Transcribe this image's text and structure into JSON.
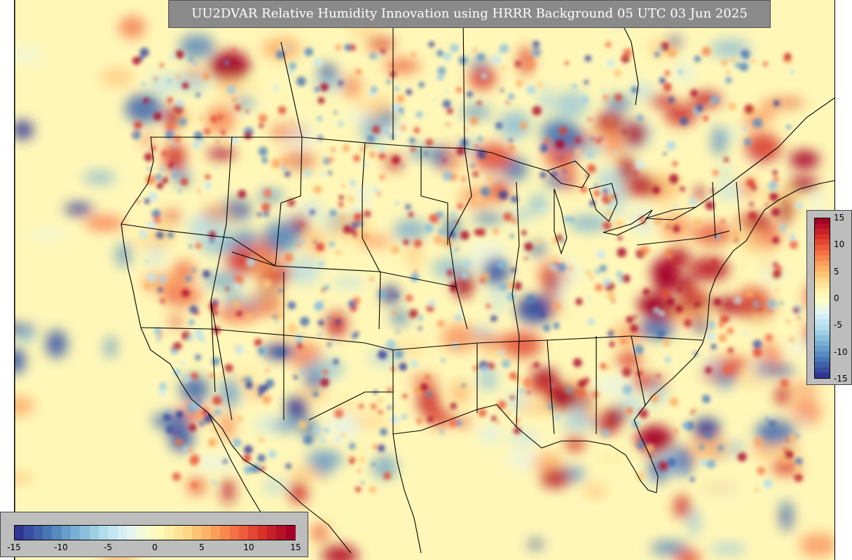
{
  "title": "UU2DVAR Relative Humidity Innovation using HRRR Background 05 UTC 03 Jun 2025",
  "colors": {
    "scale": [
      "#313695",
      "#4575b4",
      "#74add1",
      "#abd9e9",
      "#e0f3f8",
      "#ffffbf",
      "#fee090",
      "#fdae61",
      "#f46d43",
      "#d73027",
      "#a50026"
    ],
    "background_field": "#fff7b8",
    "borders": "#000000",
    "title_bg": "#8a8a8a",
    "colorbar_panel": "#bdbdbd"
  },
  "colorbar_horizontal": {
    "ticks": [
      "-15",
      "-10",
      "-5",
      "0",
      "5",
      "10",
      "15"
    ]
  },
  "colorbar_vertical": {
    "ticks": [
      "15",
      "10",
      "5",
      "0",
      "-5",
      "-10",
      "-15"
    ]
  }
}
